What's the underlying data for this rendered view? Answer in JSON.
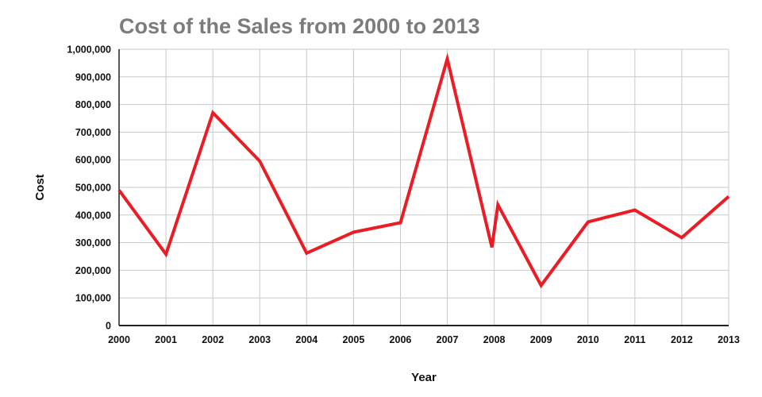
{
  "chart_data": {
    "type": "line",
    "title": "Cost of the Sales from 2000 to 2013",
    "xlabel": "Year",
    "ylabel": "Cost",
    "xlim": [
      2000,
      2013
    ],
    "ylim": [
      0,
      1000000
    ],
    "x_ticks": [
      2000,
      2001,
      2002,
      2003,
      2004,
      2005,
      2006,
      2007,
      2008,
      2009,
      2010,
      2011,
      2012,
      2013
    ],
    "y_ticks": [
      0,
      100000,
      200000,
      300000,
      400000,
      500000,
      600000,
      700000,
      800000,
      900000,
      1000000
    ],
    "grid": true,
    "legend": "none",
    "series": [
      {
        "name": "Cost",
        "points": [
          [
            2000,
            490000
          ],
          [
            2001,
            258000
          ],
          [
            2002,
            770000
          ],
          [
            2003,
            595000
          ],
          [
            2004,
            262000
          ],
          [
            2005,
            338000
          ],
          [
            2006,
            372000
          ],
          [
            2007,
            965000
          ],
          [
            2007.95,
            283000
          ],
          [
            2008.08,
            437000
          ],
          [
            2009,
            145000
          ],
          [
            2010,
            375000
          ],
          [
            2011,
            418000
          ],
          [
            2012,
            318000
          ],
          [
            2013,
            467000
          ]
        ]
      }
    ],
    "colors": {
      "line": "#ec1c24",
      "title": "#7c7c7c",
      "grid": "#c9c9c9",
      "axis": "#222222",
      "tick_text": "#111111"
    }
  }
}
